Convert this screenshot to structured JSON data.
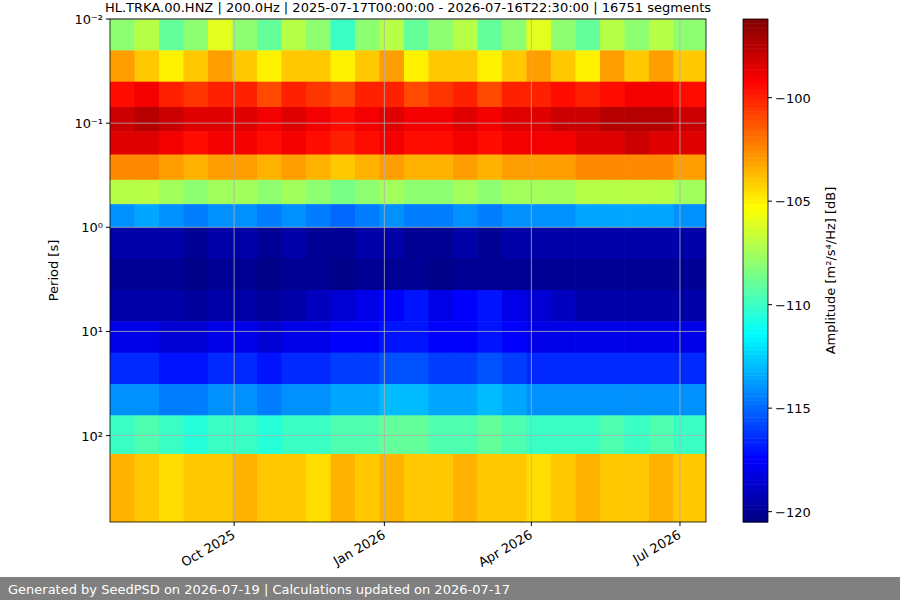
{
  "chart_data": {
    "type": "heatmap",
    "title": "HL.TRKA.00.HNZ | 200.0Hz | 2025-07-17T00:00:00 - 2026-07-16T22:30:00 | 16751 segments",
    "y_label": "Period [s]",
    "colorbar_label": "Amplitude [m²/s⁴/Hz] [dB]",
    "footer": "Generated by SeedPSD on 2026-07-19 | Calculations updated on 2026-07-17",
    "log": "y",
    "grid": true,
    "xlim": [
      "2025-07-17T00:00:00",
      "2026-07-16T22:30:00"
    ],
    "xticks": [
      {
        "value": "2025-10-01",
        "label": "Oct 2025"
      },
      {
        "value": "2026-01-01",
        "label": "Jan 2026"
      },
      {
        "value": "2026-04-01",
        "label": "Apr 2026"
      },
      {
        "value": "2026-07-01",
        "label": "Jul 2026"
      }
    ],
    "ylim": [
      0.01,
      676
    ],
    "yticks": [
      {
        "value": 0.01,
        "label": "10⁻²"
      },
      {
        "value": 0.1,
        "label": "10⁻¹"
      },
      {
        "value": 1,
        "label": "10⁰"
      },
      {
        "value": 10,
        "label": "10¹"
      },
      {
        "value": 100,
        "label": "10²"
      }
    ],
    "x": [
      "2025-07-17",
      "2025-08-01",
      "2025-08-16",
      "2025-08-31",
      "2025-09-15",
      "2025-09-30",
      "2025-10-15",
      "2025-10-30",
      "2025-11-14",
      "2025-11-29",
      "2025-12-14",
      "2025-12-29",
      "2026-01-13",
      "2026-01-28",
      "2026-02-12",
      "2026-02-27",
      "2026-03-14",
      "2026-03-29",
      "2026-04-13",
      "2026-04-28",
      "2026-05-13",
      "2026-05-28",
      "2026-06-12",
      "2026-06-27"
    ],
    "y_bins": [
      0.01,
      0.02,
      0.04,
      0.07,
      0.12,
      0.2,
      0.35,
      0.6,
      1,
      2,
      4,
      8,
      16,
      32,
      64,
      150,
      676
    ],
    "z": [
      [
        -108,
        -107,
        -109,
        -108,
        -106,
        -108,
        -109,
        -107,
        -108,
        -110,
        -108,
        -107,
        -109,
        -108,
        -107,
        -109,
        -108,
        -106,
        -108,
        -109,
        -107,
        -108,
        -107,
        -108
      ],
      [
        -103,
        -104,
        -105,
        -104,
        -103,
        -104,
        -105,
        -104,
        -104,
        -105,
        -104,
        -103,
        -105,
        -104,
        -104,
        -105,
        -104,
        -103,
        -104,
        -105,
        -103,
        -104,
        -103,
        -104
      ],
      [
        -99.5,
        -99,
        -100,
        -100.5,
        -100,
        -100,
        -101,
        -100,
        -100.5,
        -101,
        -100,
        -100,
        -101,
        -100.5,
        -100,
        -101,
        -100,
        -100,
        -99.5,
        -100,
        -99.5,
        -99,
        -99,
        -99.5
      ],
      [
        -98,
        -97.5,
        -98,
        -98.5,
        -98.5,
        -98.5,
        -99,
        -98.5,
        -99,
        -99.5,
        -99,
        -98.5,
        -99,
        -99,
        -98.5,
        -99,
        -98.5,
        -98.5,
        -98,
        -98,
        -97.5,
        -97.5,
        -97.5,
        -98
      ],
      [
        -98.5,
        -98.5,
        -99,
        -99.5,
        -99,
        -99,
        -99.5,
        -99,
        -99.5,
        -100,
        -99.5,
        -99,
        -99.5,
        -99.5,
        -99,
        -99.5,
        -99,
        -99,
        -99,
        -98.5,
        -98.5,
        -98,
        -98.5,
        -98.5
      ],
      [
        -102.5,
        -102.5,
        -103,
        -103.5,
        -103,
        -103,
        -103.5,
        -103,
        -103.5,
        -104,
        -103.5,
        -103,
        -103.5,
        -103.5,
        -103,
        -103.5,
        -103,
        -103,
        -103,
        -102.5,
        -102.5,
        -102.5,
        -102.5,
        -103
      ],
      [
        -107,
        -107,
        -107.5,
        -108,
        -107.5,
        -107.5,
        -108,
        -107.5,
        -108,
        -108.5,
        -108,
        -107.5,
        -108,
        -108,
        -107.5,
        -108,
        -107.5,
        -107.5,
        -107.5,
        -107,
        -107,
        -107,
        -107,
        -107.5
      ],
      [
        -114,
        -113.5,
        -114,
        -114.5,
        -114,
        -114,
        -114.5,
        -114,
        -114.5,
        -115,
        -114.5,
        -114,
        -114.5,
        -114.5,
        -114,
        -114.5,
        -114,
        -114,
        -114,
        -113.5,
        -113.5,
        -113.5,
        -113.5,
        -114
      ],
      [
        -119.5,
        -119.5,
        -119.5,
        -120,
        -119.5,
        -119.5,
        -120,
        -119.5,
        -120,
        -120,
        -119.5,
        -119.5,
        -120,
        -120,
        -119.5,
        -120,
        -119.5,
        -119.5,
        -119.5,
        -119.5,
        -119.5,
        -119.5,
        -119.5,
        -119.5
      ],
      [
        -120,
        -120,
        -120,
        -120.3,
        -120,
        -120,
        -120.3,
        -120,
        -120,
        -120.3,
        -120,
        -120,
        -120,
        -120.3,
        -120,
        -120,
        -120,
        -120,
        -120,
        -120,
        -120,
        -120,
        -120,
        -120
      ],
      [
        -119.5,
        -119.5,
        -119.5,
        -119.8,
        -119.5,
        -119.5,
        -119.8,
        -119.5,
        -119,
        -118.5,
        -118,
        -117.5,
        -117,
        -118,
        -117.5,
        -117,
        -118,
        -118.5,
        -119,
        -119.5,
        -119.5,
        -119.5,
        -119.5,
        -119.5
      ],
      [
        -118,
        -118,
        -118.5,
        -118.5,
        -118,
        -118,
        -118.5,
        -118,
        -118,
        -117.5,
        -117.5,
        -117,
        -117,
        -117.5,
        -117.5,
        -117,
        -117.5,
        -118,
        -118,
        -118,
        -118,
        -118,
        -118,
        -118
      ],
      [
        -116.5,
        -116.5,
        -117,
        -117,
        -116.5,
        -116.5,
        -117,
        -116.5,
        -116.5,
        -116,
        -116,
        -115.5,
        -115.5,
        -116,
        -116,
        -115.5,
        -116,
        -116.5,
        -116.5,
        -116.5,
        -116.5,
        -116.5,
        -116.5,
        -116.5
      ],
      [
        -114,
        -114,
        -114.5,
        -114.5,
        -114,
        -114,
        -114.5,
        -114,
        -114,
        -113.5,
        -113.5,
        -113,
        -113,
        -113.5,
        -113.5,
        -113,
        -113.5,
        -114,
        -114,
        -114,
        -114,
        -114,
        -114,
        -114
      ],
      [
        -110,
        -109.5,
        -110,
        -110.5,
        -110,
        -110,
        -110.5,
        -110,
        -110,
        -109.5,
        -109.5,
        -109,
        -109,
        -109.5,
        -109.5,
        -109,
        -109.5,
        -110,
        -110,
        -110,
        -109.5,
        -110,
        -109.5,
        -110
      ],
      [
        -103.5,
        -104,
        -104.5,
        -104,
        -104,
        -103.5,
        -104,
        -104,
        -104.5,
        -103.5,
        -104,
        -103.5,
        -104,
        -104,
        -103.5,
        -104,
        -104,
        -104.5,
        -104,
        -103.5,
        -104,
        -104,
        -103.5,
        -104
      ]
    ],
    "colorbar": {
      "lim": [
        -120.5,
        -96.2
      ],
      "ticks": [
        -100,
        -105,
        -110,
        -115,
        -120
      ]
    }
  }
}
